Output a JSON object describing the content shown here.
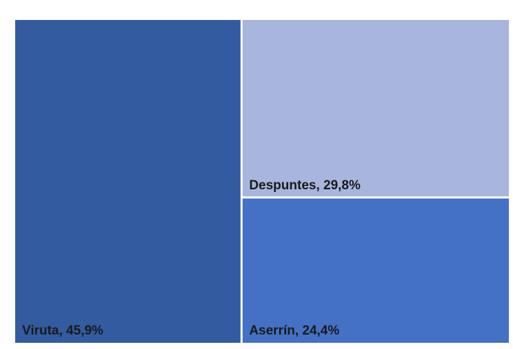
{
  "chart_data": {
    "type": "treemap",
    "items": [
      {
        "label": "Viruta, 45,9%",
        "value": 45.9,
        "color": "#335b9f"
      },
      {
        "label": "Despuntes, 29,8%",
        "value": 29.8,
        "color": "#a8b5dc"
      },
      {
        "label": "Aserrín, 24,4%",
        "value": 24.4,
        "color": "#4471c4"
      }
    ],
    "label_color": "#1a1a1a",
    "border_color": "#ffffff"
  }
}
